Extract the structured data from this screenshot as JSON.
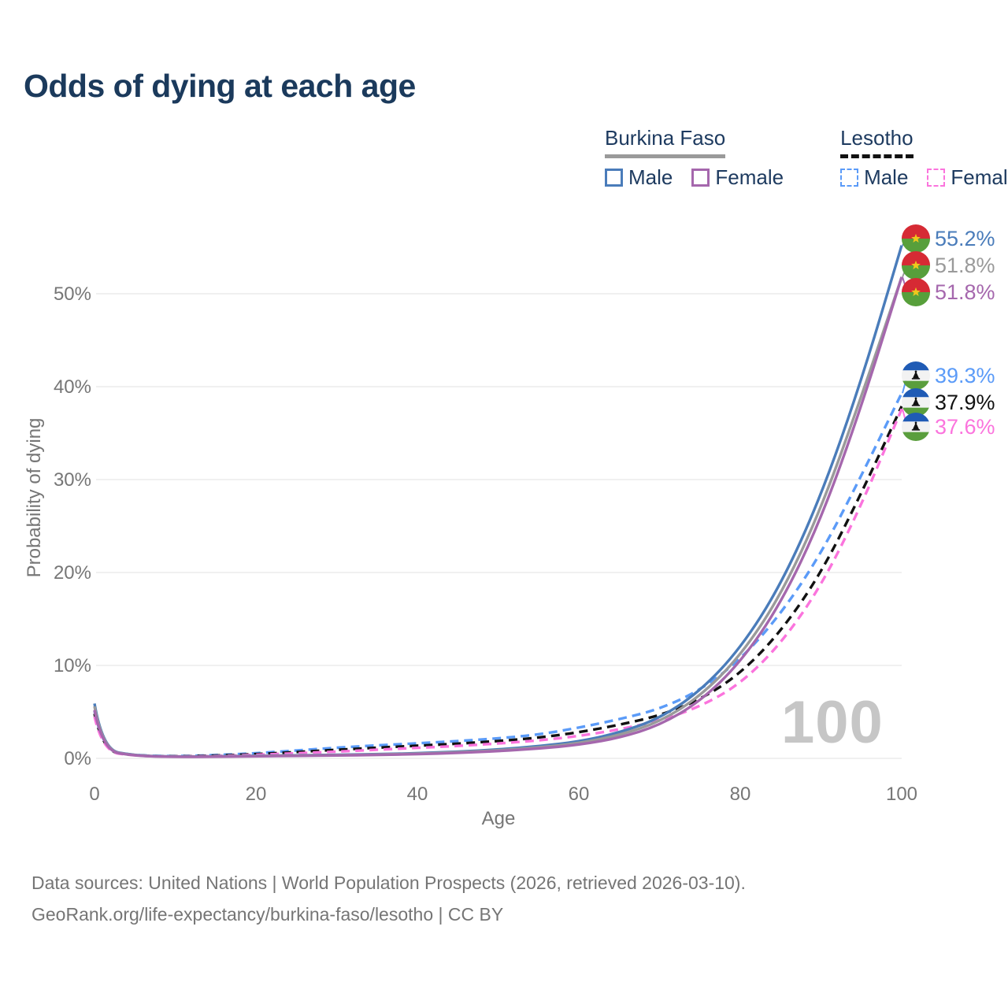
{
  "page": {
    "title": "Odds of dying at each age"
  },
  "legend": {
    "groups": [
      {
        "country": "Burkina Faso",
        "line_style": "solid",
        "underline_color": "#9a9a9a",
        "items": [
          {
            "label": "Male",
            "color": "#4a7cba"
          },
          {
            "label": "Female",
            "color": "#a567ad"
          }
        ]
      },
      {
        "country": "Lesotho",
        "line_style": "dashed",
        "underline_color": "#111111",
        "items": [
          {
            "label": "Male",
            "color": "#5b9bf8"
          },
          {
            "label": "Female",
            "color": "#fb74dd"
          }
        ]
      }
    ]
  },
  "chart_data": {
    "type": "line",
    "title": "Odds of dying at each age",
    "xlabel": "Age",
    "ylabel": "Probability of dying",
    "xlim": [
      0,
      100
    ],
    "ylim": [
      0,
      57
    ],
    "x_ticks": [
      0,
      20,
      40,
      60,
      80,
      100
    ],
    "y_ticks": [
      0,
      10,
      20,
      30,
      40,
      50
    ],
    "y_tick_labels": [
      "0%",
      "10%",
      "20%",
      "30%",
      "40%",
      "50%"
    ],
    "grid": "horizontal-only",
    "legend_position": "top-right",
    "watermark": "100",
    "ages": [
      0,
      1,
      5,
      10,
      15,
      20,
      25,
      30,
      35,
      40,
      45,
      50,
      55,
      60,
      65,
      70,
      75,
      80,
      85,
      90,
      95,
      100
    ],
    "series": [
      {
        "id": "bf-male",
        "name": "Burkina Faso Male",
        "color": "#4a7cba",
        "dash": "solid",
        "values": [
          5.9,
          0.95,
          0.3,
          0.18,
          0.22,
          0.28,
          0.33,
          0.38,
          0.45,
          0.55,
          0.72,
          0.95,
          1.3,
          1.8,
          2.75,
          4.3,
          7.2,
          11.8,
          18.6,
          28.2,
          40.6,
          55.2
        ]
      },
      {
        "id": "bf-both",
        "name": "Burkina Faso Both sexes",
        "color": "#9a9a9a",
        "dash": "solid",
        "values": [
          5.6,
          0.9,
          0.28,
          0.16,
          0.2,
          0.25,
          0.3,
          0.35,
          0.41,
          0.5,
          0.65,
          0.86,
          1.17,
          1.62,
          2.48,
          3.92,
          6.65,
          11.0,
          17.5,
          26.8,
          38.9,
          51.8
        ]
      },
      {
        "id": "bf-female",
        "name": "Burkina Faso Female",
        "color": "#a567ad",
        "dash": "solid",
        "values": [
          5.2,
          0.85,
          0.26,
          0.15,
          0.18,
          0.22,
          0.27,
          0.31,
          0.37,
          0.45,
          0.58,
          0.78,
          1.05,
          1.45,
          2.2,
          3.55,
          6.1,
          10.3,
          16.6,
          25.7,
          37.8,
          51.8
        ]
      },
      {
        "id": "ls-male",
        "name": "Lesotho Male",
        "color": "#5b9bf8",
        "dash": "dashed",
        "values": [
          5.1,
          0.85,
          0.32,
          0.22,
          0.35,
          0.55,
          0.85,
          1.15,
          1.4,
          1.62,
          1.86,
          2.15,
          2.55,
          3.3,
          4.2,
          5.3,
          7.3,
          10.6,
          15.5,
          22.0,
          30.4,
          39.3
        ]
      },
      {
        "id": "ls-both",
        "name": "Lesotho Both sexes",
        "color": "#111111",
        "dash": "dashed",
        "values": [
          4.8,
          0.8,
          0.3,
          0.2,
          0.3,
          0.45,
          0.68,
          0.92,
          1.15,
          1.36,
          1.58,
          1.86,
          2.22,
          2.8,
          3.6,
          4.6,
          6.3,
          9.1,
          13.6,
          19.9,
          28.5,
          37.9
        ]
      },
      {
        "id": "ls-female",
        "name": "Lesotho Female",
        "color": "#fb74dd",
        "dash": "dashed",
        "values": [
          4.5,
          0.75,
          0.28,
          0.18,
          0.25,
          0.38,
          0.55,
          0.72,
          0.93,
          1.13,
          1.33,
          1.6,
          1.92,
          2.4,
          3.1,
          4.05,
          5.55,
          8.0,
          12.3,
          18.5,
          27.2,
          37.6
        ]
      }
    ],
    "end_labels": [
      {
        "text": "55.2%",
        "color": "#4a7cba",
        "flag": "burkina-faso"
      },
      {
        "text": "51.8%",
        "color": "#9a9a9a",
        "flag": "burkina-faso"
      },
      {
        "text": "51.8%",
        "color": "#a567ad",
        "flag": "burkina-faso"
      },
      {
        "text": "39.3%",
        "color": "#5b9bf8",
        "flag": "lesotho"
      },
      {
        "text": "37.9%",
        "color": "#111111",
        "flag": "lesotho"
      },
      {
        "text": "37.6%",
        "color": "#fb74dd",
        "flag": "lesotho"
      }
    ]
  },
  "footer": {
    "line1": "Data sources: United Nations | World Population Prospects (2026, retrieved 2026-03-10).",
    "line2": "GeoRank.org/life-expectancy/burkina-faso/lesotho | CC BY"
  }
}
